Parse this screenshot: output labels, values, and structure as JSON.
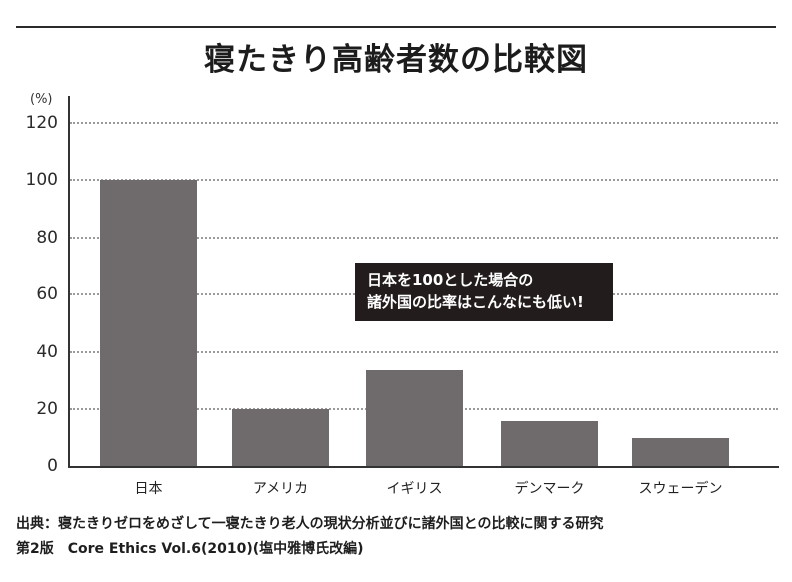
{
  "header": {
    "title": "寝たきり高齢者数の比較図"
  },
  "axis": {
    "unit_label": "(%)",
    "y_ticks": [
      "120",
      "100",
      "80",
      "60",
      "40",
      "20",
      "0"
    ]
  },
  "callout": {
    "line1": "日本を100とした場合の",
    "line2": "諸外国の比率はこんなにも低い!"
  },
  "source": {
    "line1": "出典：寝たきりゼロをめざして一寝たきり老人の現状分析並びに諸外国との比較に関する研究",
    "line2": "第2版　Core Ethics Vol.6(2010)(塩中雅博氏改編)"
  },
  "colors": {
    "bar": "#6f6b6c",
    "callout_bg": "#231c1d",
    "gridline": "#9a9a9a"
  },
  "chart_data": {
    "type": "bar",
    "title": "寝たきり高齢者数の比較図",
    "categories": [
      "日本",
      "アメリカ",
      "イギリス",
      "デンマーク",
      "スウェーデン"
    ],
    "values": [
      100,
      20,
      33.5,
      15.7,
      9.8
    ],
    "xlabel": "",
    "ylabel": "(%)",
    "ylim": [
      0,
      120
    ],
    "yticks": [
      0,
      20,
      40,
      60,
      80,
      100,
      120
    ],
    "grid": true,
    "gridline_style": "dotted",
    "legend": null,
    "annotations": [
      "日本を100とした場合の 諸外国の比率はこんなにも低い!"
    ],
    "source": "出典：寝たきりゼロをめざして一寝たきり老人の現状分析並びに諸外国との比較に関する研究 第2版 Core Ethics Vol.6(2010)(塩中雅博氏改編)"
  }
}
